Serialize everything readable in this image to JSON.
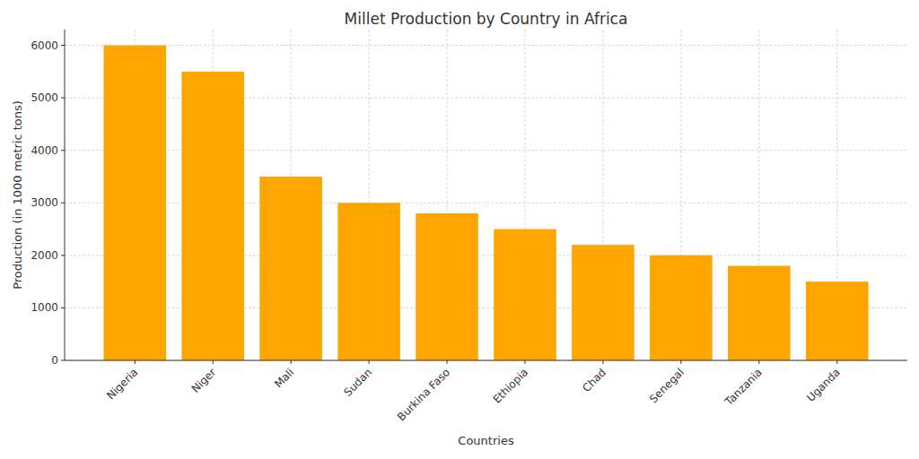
{
  "chart_data": {
    "type": "bar",
    "title": "Millet Production by Country in Africa",
    "x_label": "Countries",
    "y_label": "Production (in 1000 metric tons)",
    "categories": [
      "Nigeria",
      "Niger",
      "Mali",
      "Sudan",
      "Burkina Faso",
      "Ethiopia",
      "Chad",
      "Senegal",
      "Tanzania",
      "Uganda"
    ],
    "values": [
      6000,
      5500,
      3500,
      3000,
      2800,
      2500,
      2200,
      2000,
      1800,
      1500
    ],
    "color": "#ffa500",
    "ylim": [
      0,
      6300
    ],
    "yticks": [
      0,
      1000,
      2000,
      3000,
      4000,
      5000,
      6000
    ],
    "grid": true
  }
}
